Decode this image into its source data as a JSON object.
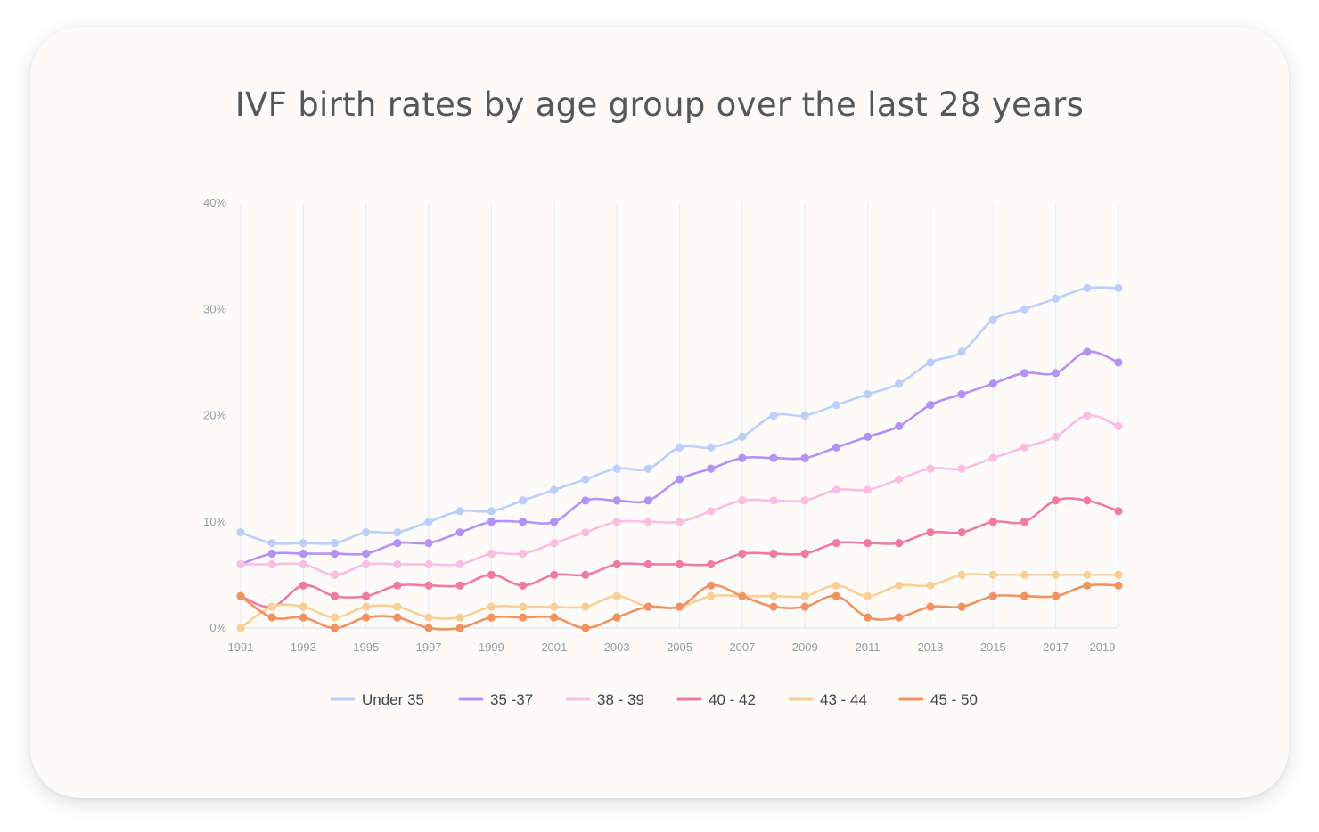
{
  "title": "IVF birth rates by age group over the last 28 years",
  "chart_data": {
    "type": "line",
    "title": "IVF birth rates by age group over the last 28 years",
    "xlabel": "",
    "ylabel": "",
    "x": [
      1991,
      1992,
      1993,
      1994,
      1995,
      1996,
      1997,
      1998,
      1999,
      2000,
      2001,
      2002,
      2003,
      2004,
      2005,
      2006,
      2007,
      2008,
      2009,
      2010,
      2011,
      2012,
      2013,
      2014,
      2015,
      2016,
      2017,
      2018,
      2019
    ],
    "x_tick_labels": [
      "1991",
      "1993",
      "1995",
      "1997",
      "1999",
      "2001",
      "2003",
      "2005",
      "2007",
      "2009",
      "2011",
      "2013",
      "2015",
      "2017",
      "2019"
    ],
    "y_tick_labels": [
      "0%",
      "10%",
      "20%",
      "30%",
      "40%"
    ],
    "ylim": [
      0,
      40
    ],
    "grid": "vertical",
    "legend_position": "bottom",
    "series": [
      {
        "name": "Under 35",
        "color": "#bccffa",
        "values": [
          9,
          8,
          8,
          8,
          9,
          9,
          10,
          11,
          11,
          12,
          13,
          14,
          15,
          15,
          17,
          17,
          18,
          20,
          20,
          21,
          22,
          23,
          25,
          26,
          29,
          30,
          31,
          32,
          32
        ]
      },
      {
        "name": "35 -37",
        "color": "#b391f5",
        "values": [
          6,
          7,
          7,
          7,
          7,
          8,
          8,
          9,
          10,
          10,
          10,
          12,
          12,
          12,
          14,
          15,
          16,
          16,
          16,
          17,
          18,
          19,
          21,
          22,
          23,
          24,
          24,
          26,
          25
        ]
      },
      {
        "name": "38 - 39",
        "color": "#fbbde0",
        "values": [
          6,
          6,
          6,
          5,
          6,
          6,
          6,
          6,
          7,
          7,
          8,
          9,
          10,
          10,
          10,
          11,
          12,
          12,
          12,
          13,
          13,
          14,
          15,
          15,
          16,
          17,
          18,
          20,
          19
        ]
      },
      {
        "name": "40 - 42",
        "color": "#f07aa4",
        "values": [
          3,
          2,
          4,
          3,
          3,
          4,
          4,
          4,
          5,
          4,
          5,
          5,
          6,
          6,
          6,
          6,
          7,
          7,
          7,
          8,
          8,
          8,
          9,
          9,
          10,
          10,
          12,
          12,
          11
        ]
      },
      {
        "name": "43 - 44",
        "color": "#f8cf95",
        "values": [
          0,
          2,
          2,
          1,
          2,
          2,
          1,
          1,
          2,
          2,
          2,
          2,
          3,
          2,
          2,
          3,
          3,
          3,
          3,
          4,
          3,
          4,
          4,
          5,
          5,
          5,
          5,
          5,
          5
        ]
      },
      {
        "name": "45 - 50",
        "color": "#f19360",
        "values": [
          3,
          1,
          1,
          0,
          1,
          1,
          0,
          0,
          1,
          1,
          1,
          0,
          1,
          2,
          2,
          4,
          3,
          2,
          2,
          3,
          1,
          1,
          2,
          2,
          3,
          3,
          3,
          4,
          4
        ]
      }
    ]
  }
}
